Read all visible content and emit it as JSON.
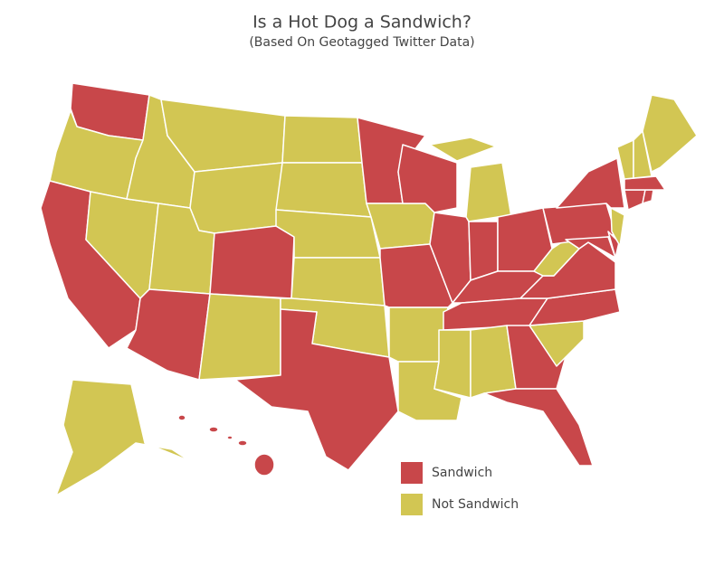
{
  "header": {
    "title": "Is a Hot Dog a Sandwich?",
    "subtitle": "(Based On Geotagged Twitter Data)"
  },
  "legend": [
    {
      "label": "Sandwich",
      "color": "#c8474a"
    },
    {
      "label": "Not Sandwich",
      "color": "#d2c653"
    }
  ]
}
